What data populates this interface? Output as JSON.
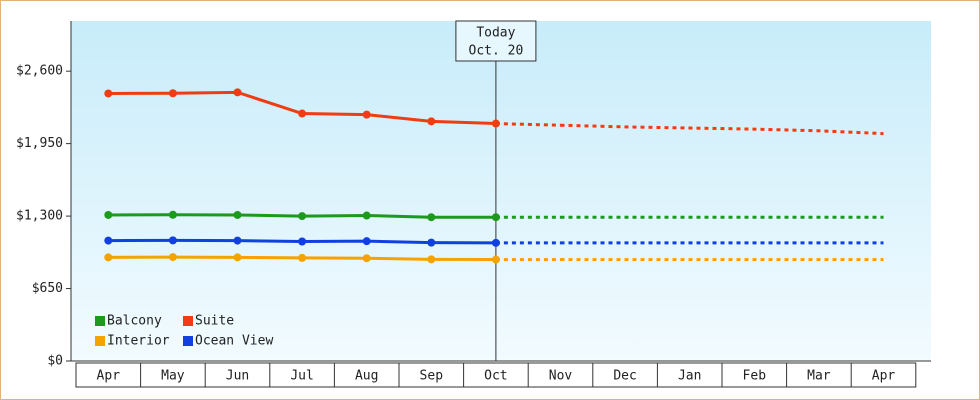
{
  "chart_data": {
    "type": "line",
    "categories": [
      "Apr",
      "May",
      "Jun",
      "Jul",
      "Aug",
      "Sep",
      "Oct",
      "Nov",
      "Dec",
      "Jan",
      "Feb",
      "Mar",
      "Apr"
    ],
    "series": [
      {
        "name": "Balcony",
        "color": "#1c9a1c",
        "values": [
          1310,
          1312,
          1310,
          1300,
          1305,
          1290,
          1290,
          1290,
          1290,
          1290,
          1290,
          1290,
          1290
        ]
      },
      {
        "name": "Suite",
        "color": "#f03c12",
        "values": [
          2400,
          2402,
          2410,
          2220,
          2210,
          2150,
          2130,
          2115,
          2100,
          2090,
          2080,
          2065,
          2040
        ]
      },
      {
        "name": "Interior",
        "color": "#f5a300",
        "values": [
          930,
          932,
          930,
          925,
          922,
          912,
          910,
          910,
          910,
          910,
          910,
          910,
          910
        ]
      },
      {
        "name": "Ocean View",
        "color": "#1040e0",
        "values": [
          1080,
          1082,
          1080,
          1072,
          1075,
          1062,
          1060,
          1060,
          1060,
          1060,
          1060,
          1060,
          1060
        ]
      }
    ],
    "ylim": [
      0,
      3050
    ],
    "yticks": [
      {
        "value": 0,
        "label": "$0"
      },
      {
        "value": 650,
        "label": "$650"
      },
      {
        "value": 1300,
        "label": "$1,300"
      },
      {
        "value": 1950,
        "label": "$1,950"
      },
      {
        "value": 2600,
        "label": "$2,600"
      }
    ],
    "today": {
      "label": "Today",
      "date": "Oct. 20",
      "category": "Oct"
    }
  }
}
